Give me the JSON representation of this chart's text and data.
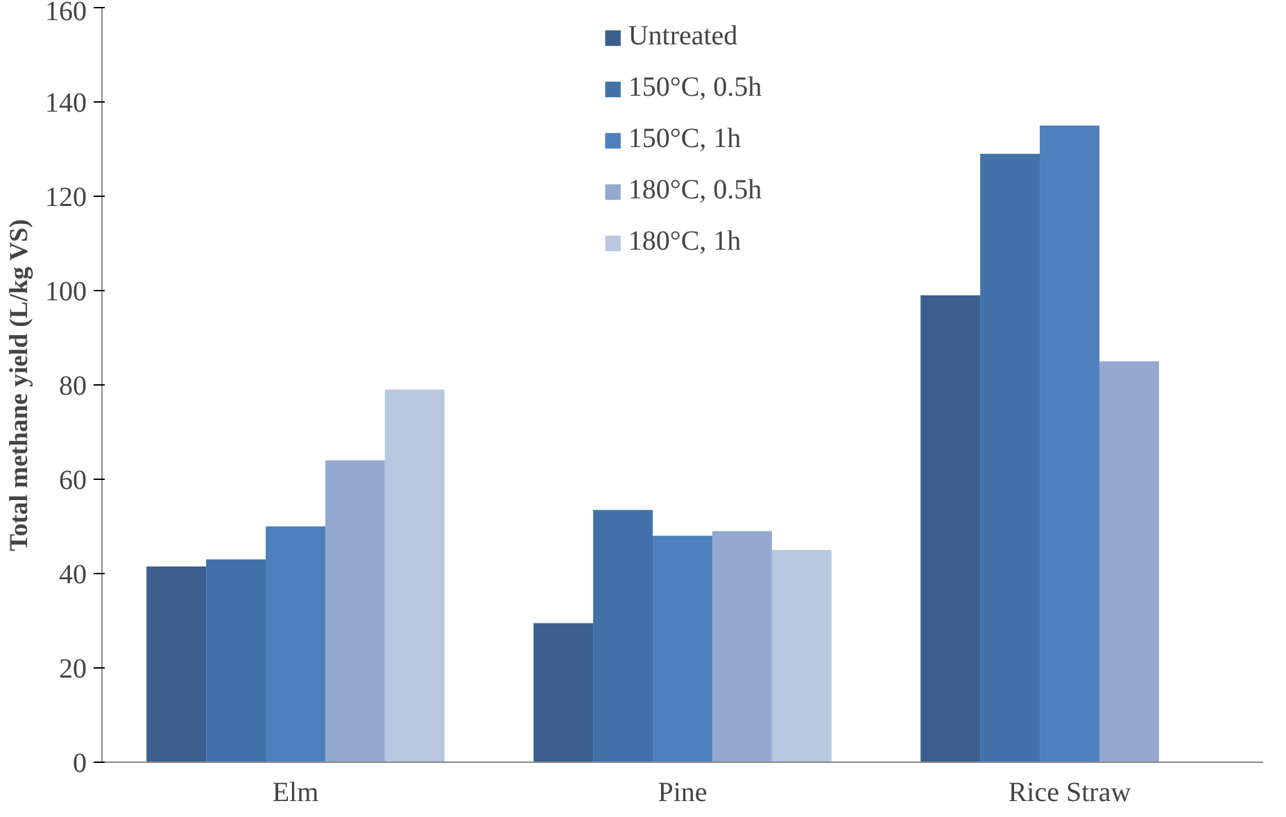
{
  "chart_data": {
    "type": "bar",
    "ylabel": "Total methane yield (L/kg VS)",
    "categories": [
      "Elm",
      "Pine",
      "Rice Straw"
    ],
    "series": [
      {
        "name": "Untreated",
        "color": "#3b5e8c",
        "values": [
          41.5,
          29.5,
          99
        ]
      },
      {
        "name": "150°C, 0.5h",
        "color": "#4372aa",
        "values": [
          43,
          53.5,
          129
        ]
      },
      {
        "name": "150°C, 1h",
        "color": "#4d80bd",
        "values": [
          50,
          48,
          135
        ]
      },
      {
        "name": "180°C, 0.5h",
        "color": "#95a9d0",
        "values": [
          64,
          49,
          85
        ]
      },
      {
        "name": "180°C, 1h",
        "color": "#b9c7e1",
        "values": [
          79,
          45,
          null
        ]
      }
    ],
    "ylim": [
      0,
      160
    ],
    "yticks": [
      0,
      20,
      40,
      60,
      80,
      100,
      120,
      140,
      160
    ],
    "grid": false,
    "legend": "top"
  }
}
